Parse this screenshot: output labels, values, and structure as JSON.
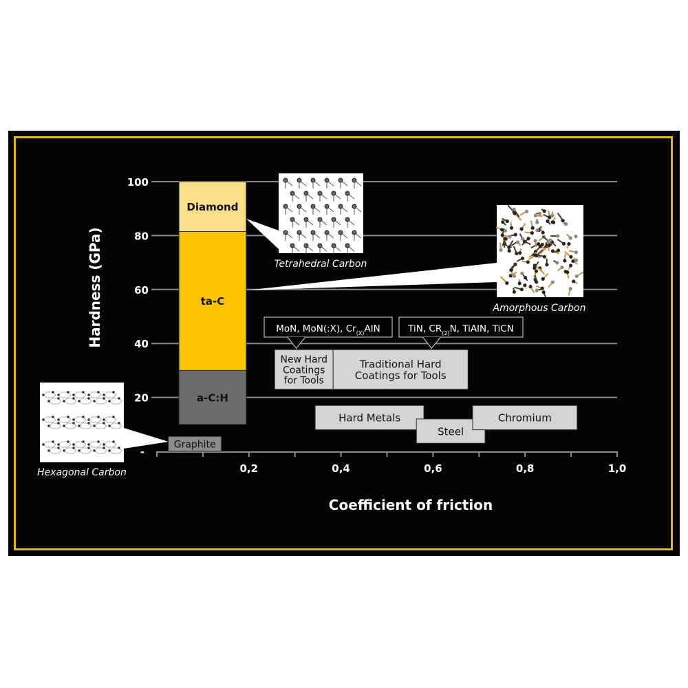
{
  "chart_data": {
    "type": "bar",
    "subtype": "range-boxes",
    "xlabel": "Coefficient of friction",
    "ylabel": "Hardness (GPa)",
    "xlim": [
      0,
      1.0
    ],
    "ylim": [
      0,
      100
    ],
    "xticks": [
      0.1,
      0.2,
      0.3,
      0.4,
      0.5,
      0.6,
      0.7,
      0.8,
      0.9,
      1.0
    ],
    "xtick_labels": [
      {
        "v": 0.2,
        "label": "0,2"
      },
      {
        "v": 0.4,
        "label": "0,4"
      },
      {
        "v": 0.6,
        "label": "0,6"
      },
      {
        "v": 0.8,
        "label": "0,8"
      },
      {
        "v": 1.0,
        "label": "1,0"
      }
    ],
    "yticks": [
      {
        "v": 20,
        "label": "20"
      },
      {
        "v": 40,
        "label": "40"
      },
      {
        "v": 60,
        "label": "60"
      },
      {
        "v": 80,
        "label": "80"
      },
      {
        "v": 100,
        "label": "100"
      }
    ],
    "y_zero_label": "-",
    "grid": "horizontal",
    "boxes": [
      {
        "name": "Diamond",
        "x": [
          0.048,
          0.194
        ],
        "y": [
          81.5,
          100
        ],
        "color": "#fbdf8a",
        "text": "#111111"
      },
      {
        "name": "ta-C",
        "x": [
          0.048,
          0.194
        ],
        "y": [
          30,
          81.5
        ],
        "color": "#fcc500",
        "text": "#111111"
      },
      {
        "name": "a-C:H",
        "x": [
          0.048,
          0.194
        ],
        "y": [
          10,
          30
        ],
        "color": "#6c6b6b",
        "text": "#111111"
      },
      {
        "name": "Graphite",
        "x": [
          0.025,
          0.14
        ],
        "y": [
          0,
          5.5
        ],
        "color": "#8c8b8b",
        "text": "#111111"
      },
      {
        "name": "New Hard\nCoatings\nfor Tools",
        "x": [
          0.256,
          0.383
        ],
        "y": [
          23,
          37.7
        ],
        "color": "#d4d4d4",
        "text": "#111111"
      },
      {
        "name": "Traditional Hard\nCoatings for Tools",
        "x": [
          0.383,
          0.676
        ],
        "y": [
          23,
          37.7
        ],
        "color": "#d4d4d4",
        "text": "#111111"
      },
      {
        "name": "Hard Metals",
        "x": [
          0.344,
          0.58
        ],
        "y": [
          8,
          17
        ],
        "color": "#d4d4d4",
        "text": "#111111"
      },
      {
        "name": "Steel",
        "x": [
          0.564,
          0.713
        ],
        "y": [
          3,
          12
        ],
        "color": "#d4d4d4",
        "text": "#111111"
      },
      {
        "name": "Chromium",
        "x": [
          0.686,
          0.913
        ],
        "y": [
          8,
          17
        ],
        "color": "#d4d4d4",
        "text": "#111111"
      }
    ],
    "annotations": [
      {
        "text": "MoN, MoN(:X), Cr",
        "sub": "(X)",
        "after": "AIN",
        "points_to": {
          "x": 0.303,
          "y": 37.7
        }
      },
      {
        "text": "TiN, CR",
        "sub": "(2)",
        "after": "N, TiAIN, TiCN",
        "points_to": {
          "x": 0.597,
          "y": 37.7
        }
      }
    ],
    "structure_images": [
      {
        "caption": "Tetrahedral Carbon",
        "kind": "tetrahedral",
        "callout_for": "Diamond"
      },
      {
        "caption": "Amorphous Carbon",
        "kind": "amorphous",
        "callout_for": "ta-C"
      },
      {
        "caption": "Hexagonal Carbon",
        "kind": "hexagonal",
        "callout_for": "Graphite"
      }
    ]
  },
  "colors": {
    "background": "#050404",
    "border": "#e3b71c",
    "grid": "#8a8a8a",
    "axis_text": "#ffffff"
  }
}
